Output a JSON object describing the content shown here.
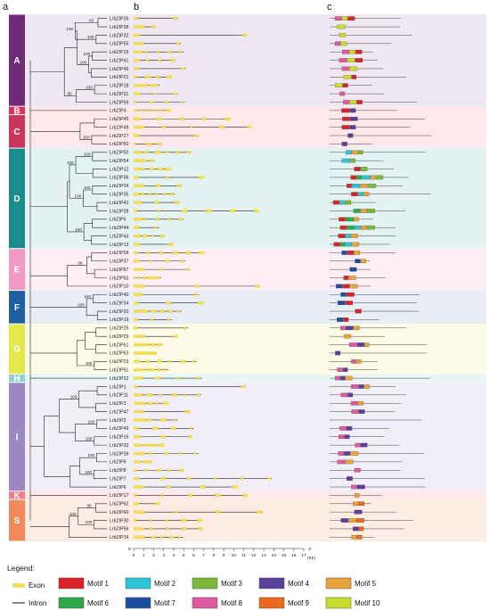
{
  "panels": {
    "a": "a",
    "b": "b",
    "c": "c"
  },
  "groups": [
    {
      "name": "A",
      "color": "#6d2b78",
      "bg": "#efe8f3",
      "genes": [
        "LrbZIP26",
        "LrbZIP38",
        "LrbZIP32",
        "LrbZIP55",
        "LrbZIP15",
        "LrbZIP41",
        "LrbZIP46",
        "LrbZIP21",
        "LrbZIP18",
        "LrbZIP31",
        "LrbZIP59"
      ]
    },
    {
      "name": "B",
      "color": "#d6345a",
      "bg": "#fde9ec",
      "genes": [
        "LrbZIP4"
      ]
    },
    {
      "name": "C",
      "color": "#c8375b",
      "bg": "#fde9ec",
      "genes": [
        "LrbZIP45",
        "LrbZIP48",
        "LrbZIP27",
        "LrbZIP50"
      ]
    },
    {
      "name": "D",
      "color": "#1a8c8c",
      "bg": "#e4f3f1",
      "genes": [
        "LrbZIP52",
        "LrbZIP54",
        "LrbZIP12",
        "LrbZIP36",
        "LrbZIP24",
        "LrbZIP35",
        "LrbZIP42",
        "LrbZIP28",
        "LrbZIP5",
        "LrbZIP44",
        "LrbZIP43",
        "LrbZIP13"
      ]
    },
    {
      "name": "E",
      "color": "#f19ac4",
      "bg": "#fdeef5",
      "genes": [
        "LrbZIP58",
        "LrbZIP37",
        "LrbZIP57",
        "LrbZIP53",
        "LrbZIP10"
      ]
    },
    {
      "name": "F",
      "color": "#1f5fa0",
      "bg": "#e8edf6",
      "genes": [
        "LrbZIP40",
        "LrbZIP34",
        "LrbZIP20",
        "LrbZIP19"
      ]
    },
    {
      "name": "G",
      "color": "#e3e84e",
      "bg": "#fbfbe8",
      "genes": [
        "LrbZIP25",
        "LrbZIP29",
        "LrbZIP61",
        "LrbZIP63",
        "LrbZIP23",
        "LrbZIP51"
      ]
    },
    {
      "name": "H",
      "color": "#8fd3d6",
      "bg": "#e9f6f6",
      "genes": [
        "LrbZIP22"
      ]
    },
    {
      "name": "I",
      "color": "#9c88c0",
      "bg": "#f1eef7",
      "genes": [
        "LrbZIP1",
        "LrbZIP11",
        "LrbZIP3",
        "LrbZIP47",
        "LrbZIP2",
        "LrbZIP49",
        "LrbZIP16",
        "LrbZIP33",
        "LrbZIP39",
        "LrbZIP9",
        "LrbZIP8",
        "LrbZIP7",
        "LrbZIP6"
      ]
    },
    {
      "name": "K",
      "color": "#f07e88",
      "bg": "#fde9e9",
      "genes": [
        "LrbZIP17"
      ]
    },
    {
      "name": "S",
      "color": "#f08a5d",
      "bg": "#fdece4",
      "genes": [
        "LrbZIP62",
        "LrbZIP60",
        "LrbZIP30",
        "LrbZIP56",
        "LrbZIP14"
      ]
    }
  ],
  "bootstrap_values": [
    "93",
    "100",
    "100",
    "100",
    "100",
    "100",
    "90",
    "100",
    "100",
    "100",
    "100",
    "100",
    "100",
    "99",
    "100",
    "100",
    "100",
    "100",
    "100",
    "100",
    "100",
    "100",
    "96",
    "100",
    "100",
    "100",
    "100",
    "100",
    "100",
    "100"
  ],
  "axis": {
    "five_prime": "5'",
    "three_prime": "3'",
    "ticks": [
      "0",
      "1",
      "2",
      "3",
      "4",
      "5",
      "6",
      "7",
      "8",
      "9",
      "10",
      "11",
      "12",
      "13",
      "14",
      "15",
      "16",
      "17"
    ],
    "unit": "(Kb)"
  },
  "legend": {
    "title": "Legend:",
    "exon": "Exon",
    "intron": "Intron",
    "motifs": [
      {
        "label": "Motif 1",
        "color": "#d8232a"
      },
      {
        "label": "Motif 2",
        "color": "#2ec4d8"
      },
      {
        "label": "Motif 3",
        "color": "#7bb83a"
      },
      {
        "label": "Motif 4",
        "color": "#5b3f98"
      },
      {
        "label": "Motif 5",
        "color": "#e8a43a"
      },
      {
        "label": "Motif 6",
        "color": "#2fa84a"
      },
      {
        "label": "Motif 7",
        "color": "#1b4ea0"
      },
      {
        "label": "Motif 8",
        "color": "#e05aa0"
      },
      {
        "label": "Motif 9",
        "color": "#ec6a1f"
      },
      {
        "label": "Motif 10",
        "color": "#c8dc2c"
      }
    ],
    "exon_color": "#f2dc58"
  }
}
